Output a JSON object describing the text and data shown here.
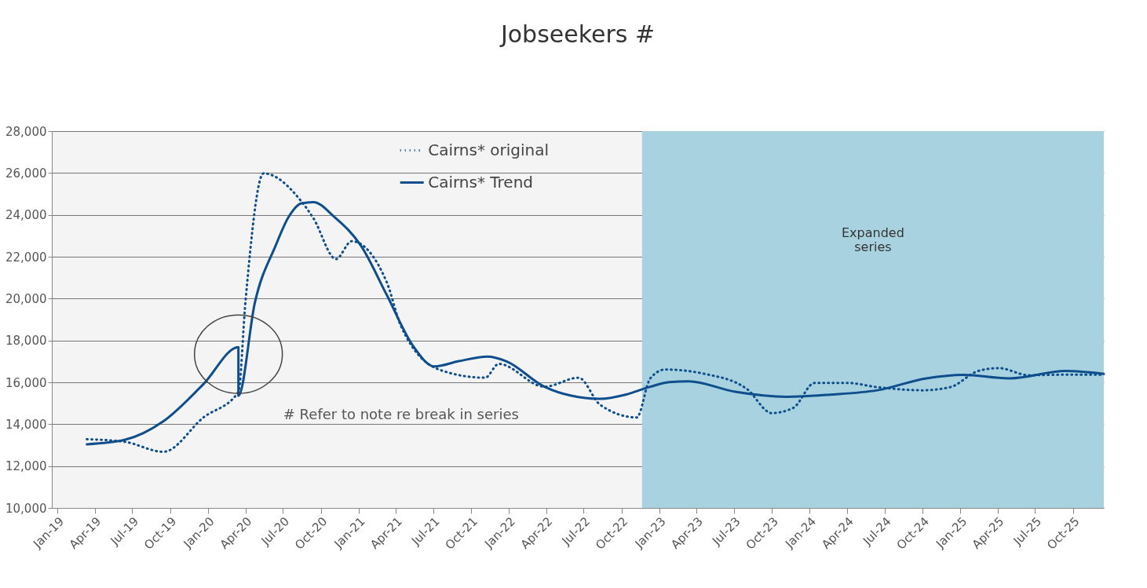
{
  "chart_data": {
    "type": "line",
    "title": "Jobseekers #",
    "xlim": [
      "2018-12-18",
      "2025-12-15"
    ],
    "ylim": [
      10000,
      28000
    ],
    "yticks": [
      {
        "value": 10000,
        "label": "10,000"
      },
      {
        "value": 12000,
        "label": "12,000"
      },
      {
        "value": 14000,
        "label": "14,000"
      },
      {
        "value": 16000,
        "label": "16,000"
      },
      {
        "value": 18000,
        "label": "18,000"
      },
      {
        "value": 20000,
        "label": "20,000"
      },
      {
        "value": 22000,
        "label": "22,000"
      },
      {
        "value": 24000,
        "label": "24,000"
      },
      {
        "value": 26000,
        "label": "26,000"
      },
      {
        "value": 28000,
        "label": "28,000"
      }
    ],
    "xticks": [
      {
        "value": "2019-01",
        "label": "Jan-19"
      },
      {
        "value": "2019-04",
        "label": "Apr-19"
      },
      {
        "value": "2019-07",
        "label": "Jul-19"
      },
      {
        "value": "2019-10",
        "label": "Oct-19"
      },
      {
        "value": "2020-01",
        "label": "Jan-20"
      },
      {
        "value": "2020-04",
        "label": "Apr-20"
      },
      {
        "value": "2020-07",
        "label": "Jul-20"
      },
      {
        "value": "2020-10",
        "label": "Oct-20"
      },
      {
        "value": "2021-01",
        "label": "Jan-21"
      },
      {
        "value": "2021-04",
        "label": "Apr-21"
      },
      {
        "value": "2021-07",
        "label": "Jul-21"
      },
      {
        "value": "2021-10",
        "label": "Oct-21"
      },
      {
        "value": "2022-01",
        "label": "Jan-22"
      },
      {
        "value": "2022-04",
        "label": "Apr-22"
      },
      {
        "value": "2022-07",
        "label": "Jul-22"
      },
      {
        "value": "2022-10",
        "label": "Oct-22"
      },
      {
        "value": "2023-01",
        "label": "Jan-23"
      },
      {
        "value": "2023-04",
        "label": "Apr-23"
      },
      {
        "value": "2023-07",
        "label": "Jul-23"
      },
      {
        "value": "2023-10",
        "label": "Oct-23"
      },
      {
        "value": "2024-01",
        "label": "Jan-24"
      },
      {
        "value": "2024-04",
        "label": "Apr-24"
      },
      {
        "value": "2024-07",
        "label": "Jul-24"
      },
      {
        "value": "2024-10",
        "label": "Oct-24"
      },
      {
        "value": "2025-01",
        "label": "Jan-25"
      },
      {
        "value": "2025-04",
        "label": "Apr-25"
      },
      {
        "value": "2025-07",
        "label": "Jul-25"
      },
      {
        "value": "2025-10",
        "label": "Oct-25"
      }
    ],
    "grid": "y",
    "legend": "top",
    "bands": [
      {
        "axis": "x",
        "from": "2022-11-20",
        "to": "2025-12-15",
        "label": "Expanded series",
        "color": "#a8d2df"
      }
    ],
    "annotations": [
      "# Refer to note re break in series"
    ],
    "series": [
      {
        "name": "Cairns* original",
        "color": "#0f4e8c",
        "line_style": "dotted",
        "x": [
          "2019-03-13",
          "2019-06-13",
          "2019-09-15",
          "2019-12-21",
          "2020-03-15",
          "2020-04-01",
          "2020-05-15",
          "2020-08-15",
          "2020-09-13",
          "2020-11-07",
          "2020-12-15",
          "2021-03-10",
          "2021-04-13",
          "2021-07-19",
          "2021-11-04",
          "2021-12-07",
          "2022-03-28",
          "2022-06-19",
          "2022-08-10",
          "2022-11-07",
          "2022-12-10",
          "2023-01-15",
          "2023-04-22",
          "2023-08-01",
          "2023-10-01",
          "2023-11-22",
          "2024-01-13",
          "2024-04-01",
          "2024-06-13",
          "2024-10-01",
          "2024-12-07",
          "2025-02-13",
          "2025-04-04",
          "2025-06-15",
          "2025-10-04",
          "2025-12-15"
        ],
        "values": [
          13280,
          13160,
          12680,
          14320,
          15540,
          19810,
          25980,
          24640,
          23840,
          21890,
          22740,
          20790,
          18720,
          16580,
          16220,
          16880,
          15790,
          16220,
          14930,
          14320,
          16190,
          16610,
          16400,
          15690,
          14530,
          14780,
          15970,
          15970,
          15770,
          15620,
          15770,
          16540,
          16680,
          16340,
          16370,
          16370
        ]
      },
      {
        "name": "Cairns* Trend",
        "color": "#0f4e8c",
        "line_style": "solid",
        "x": [
          "2019-03-13",
          "2019-06-13",
          "2019-09-15",
          "2019-12-21",
          "2020-03-15",
          "2020-03-15",
          "2020-04-24",
          "2020-06-13",
          "2020-07-15",
          "2020-08-15",
          "2020-09-13",
          "2020-11-03",
          "2021-01-07",
          "2021-03-10",
          "2021-05-13",
          "2021-07-04",
          "2021-09-01",
          "2021-11-10",
          "2021-12-25",
          "2022-03-28",
          "2022-06-01",
          "2022-08-10",
          "2022-10-13",
          "2022-12-10",
          "2023-01-25",
          "2023-03-13",
          "2023-07-04",
          "2023-11-07",
          "2024-02-19",
          "2024-06-13",
          "2024-10-10",
          "2025-01-07",
          "2025-05-01",
          "2025-09-13",
          "2025-12-15"
        ],
        "values": [
          13040,
          13250,
          14140,
          15910,
          17680,
          15360,
          19810,
          22510,
          23900,
          24550,
          24610,
          23900,
          22510,
          20180,
          17740,
          16760,
          17010,
          17230,
          17010,
          15790,
          15360,
          15210,
          15420,
          15790,
          16010,
          16050,
          15550,
          15310,
          15410,
          15620,
          16190,
          16360,
          16190,
          16540,
          16400
        ]
      }
    ]
  }
}
